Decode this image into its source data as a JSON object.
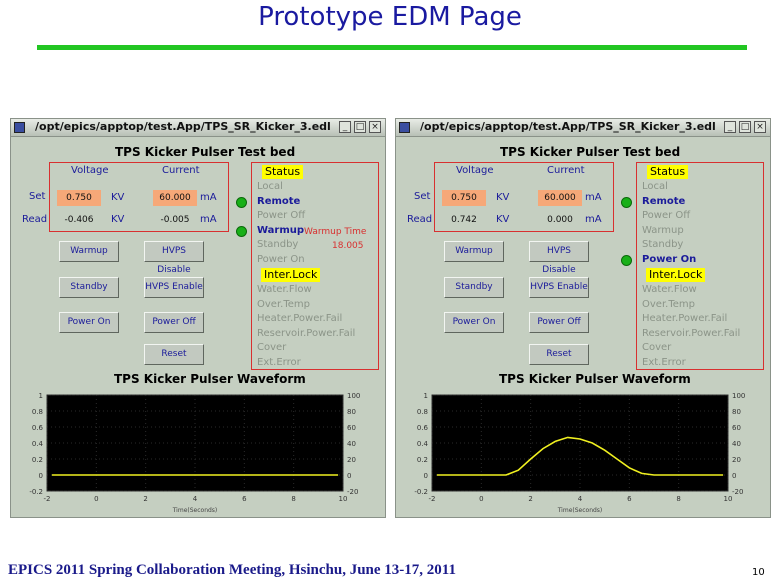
{
  "slide": {
    "title": "Prototype EDM Page",
    "footer": "EPICS 2011 Spring Collaboration Meeting, Hsinchu, June 13-17, 2011",
    "page_number": "10"
  },
  "windows": [
    {
      "titlebar": "/opt/epics/apptop/test.App/TPS_SR_Kicker_3.edl",
      "panel_title": "TPS Kicker Pulser Test bed",
      "headers": {
        "voltage": "Voltage",
        "current": "Current"
      },
      "row_labels": {
        "set": "Set",
        "read": "Read"
      },
      "set": {
        "voltage": "0.750",
        "voltage_unit": "KV",
        "current": "60.000",
        "current_unit": "mA"
      },
      "read": {
        "voltage": "-0.406",
        "voltage_unit": "KV",
        "current": "-0.005",
        "current_unit": "mA"
      },
      "buttons": {
        "warmup": "Warmup",
        "hvps_disable": "HVPS Disable",
        "standby": "Standby",
        "hvps_enable": "HVPS Enable",
        "power_on": "Power On",
        "power_off": "Power Off",
        "reset": "Reset"
      },
      "status_title": "Status",
      "status": [
        "Local",
        "Remote",
        "Power Off",
        "Warmup",
        "Standby",
        "Power On"
      ],
      "status_on": [
        false,
        true,
        false,
        true,
        false,
        false
      ],
      "warmup_time_label": "Warmup Time",
      "warmup_time_value": "18.005",
      "interlock_title": "Inter.Lock",
      "interlocks": [
        "Water.Flow",
        "Over.Temp",
        "Heater.Power.Fail",
        "Reservoir.Power.Fail",
        "Cover",
        "Ext.Error"
      ],
      "plot_title": "TPS Kicker Pulser Waveform",
      "x_axis_label": "Time(Seconds)",
      "left_ticks": [
        "1",
        "0.8",
        "0.6",
        "0.4",
        "0.2",
        "0",
        "-0.2"
      ],
      "right_ticks": [
        "100",
        "80",
        "60",
        "40",
        "20",
        "0",
        "-20"
      ],
      "x_ticks": [
        "-2",
        "0",
        "2",
        "4",
        "6",
        "8",
        "10"
      ]
    },
    {
      "titlebar": "/opt/epics/apptop/test.App/TPS_SR_Kicker_3.edl",
      "panel_title": "TPS Kicker Pulser Test bed",
      "headers": {
        "voltage": "Voltage",
        "current": "Current"
      },
      "row_labels": {
        "set": "Set",
        "read": "Read"
      },
      "set": {
        "voltage": "0.750",
        "voltage_unit": "KV",
        "current": "60.000",
        "current_unit": "mA"
      },
      "read": {
        "voltage": "0.742",
        "voltage_unit": "KV",
        "current": "0.000",
        "current_unit": "mA"
      },
      "buttons": {
        "warmup": "Warmup",
        "hvps_disable": "HVPS Disable",
        "standby": "Standby",
        "hvps_enable": "HVPS Enable",
        "power_on": "Power On",
        "power_off": "Power Off",
        "reset": "Reset"
      },
      "status_title": "Status",
      "status": [
        "Local",
        "Remote",
        "Power Off",
        "Warmup",
        "Standby",
        "Power On"
      ],
      "status_on": [
        false,
        true,
        false,
        false,
        false,
        true
      ],
      "warmup_time_label": "",
      "warmup_time_value": "",
      "interlock_title": "Inter.Lock",
      "interlocks": [
        "Water.Flow",
        "Over.Temp",
        "Heater.Power.Fail",
        "Reservoir.Power.Fail",
        "Cover",
        "Ext.Error"
      ],
      "plot_title": "TPS Kicker Pulser Waveform",
      "x_axis_label": "Time(Seconds)",
      "left_ticks": [
        "1",
        "0.8",
        "0.6",
        "0.4",
        "0.2",
        "0",
        "-0.2"
      ],
      "right_ticks": [
        "100",
        "80",
        "60",
        "40",
        "20",
        "0",
        "-20"
      ],
      "x_ticks": [
        "-2",
        "0",
        "2",
        "4",
        "6",
        "8",
        "10"
      ]
    }
  ],
  "chart_data": [
    {
      "type": "line",
      "title": "TPS Kicker Pulser Waveform",
      "xlabel": "Time(Seconds)",
      "xlim": [
        -2,
        10
      ],
      "ylim": [
        -0.2,
        1
      ],
      "y2lim": [
        -20,
        100
      ],
      "grid": true,
      "series": [
        {
          "x": [
            -1.8,
            -1,
            0,
            1,
            2,
            3,
            4,
            5,
            6,
            7,
            8,
            9.8
          ],
          "y": [
            0,
            0,
            0,
            0,
            0,
            0,
            0,
            0,
            0,
            0,
            0,
            0
          ]
        }
      ]
    },
    {
      "type": "line",
      "title": "TPS Kicker Pulser Waveform",
      "xlabel": "Time(Seconds)",
      "xlim": [
        -2,
        10
      ],
      "ylim": [
        -0.2,
        1
      ],
      "y2lim": [
        -20,
        100
      ],
      "grid": true,
      "series": [
        {
          "x": [
            -1.8,
            -1,
            0,
            1,
            1.5,
            2,
            2.5,
            3,
            3.5,
            4,
            4.5,
            5,
            5.5,
            6,
            6.5,
            7,
            8,
            9.8
          ],
          "y": [
            0,
            0,
            0,
            0,
            0.06,
            0.2,
            0.33,
            0.42,
            0.47,
            0.45,
            0.4,
            0.31,
            0.2,
            0.09,
            0.02,
            0,
            0,
            0
          ]
        }
      ]
    }
  ]
}
